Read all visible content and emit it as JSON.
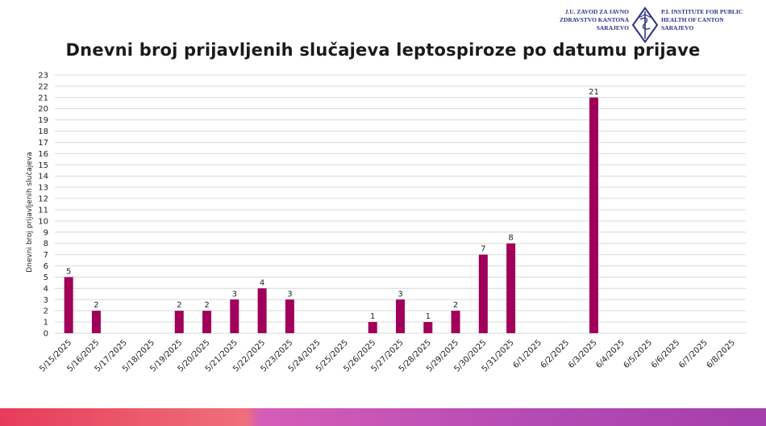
{
  "logo": {
    "left_lines": [
      "J.U. ZAVOD ZA JAVNO",
      "ZDRAVSTVO KANTONA",
      "SARAJEVO"
    ],
    "right_lines": [
      "P.I. INSTITUTE FOR PUBLIC",
      "HEALTH OF CANTON",
      "SARAJEVO"
    ]
  },
  "colors": {
    "bar": "#a0005a",
    "grid": "#d9d9d9",
    "brand": "#2b3486"
  },
  "chart_data": {
    "type": "bar",
    "title": "Dnevni broj prijavljenih slučajeva leptospiroze po datumu prijave",
    "xlabel": "",
    "ylabel": "Dnevni broj prijavljenih slučajeva",
    "ylim": [
      0,
      23
    ],
    "yticks": [
      0,
      1,
      2,
      3,
      4,
      5,
      6,
      7,
      8,
      9,
      10,
      11,
      12,
      13,
      14,
      15,
      16,
      17,
      18,
      19,
      20,
      21,
      22,
      23
    ],
    "categories": [
      "5/15/2025",
      "5/16/2025",
      "5/17/2025",
      "5/18/2025",
      "5/19/2025",
      "5/20/2025",
      "5/21/2025",
      "5/22/2025",
      "5/23/2025",
      "5/24/2025",
      "5/25/2025",
      "5/26/2025",
      "5/27/2025",
      "5/28/2025",
      "5/29/2025",
      "5/30/2025",
      "5/31/2025",
      "6/1/2025",
      "6/2/2025",
      "6/3/2025",
      "6/4/2025",
      "6/5/2025",
      "6/6/2025",
      "6/7/2025",
      "6/8/2025"
    ],
    "values": [
      5,
      2,
      null,
      null,
      2,
      2,
      3,
      4,
      3,
      null,
      null,
      1,
      3,
      1,
      2,
      7,
      8,
      null,
      null,
      21,
      null,
      null,
      null,
      null,
      null
    ],
    "grid": true
  }
}
